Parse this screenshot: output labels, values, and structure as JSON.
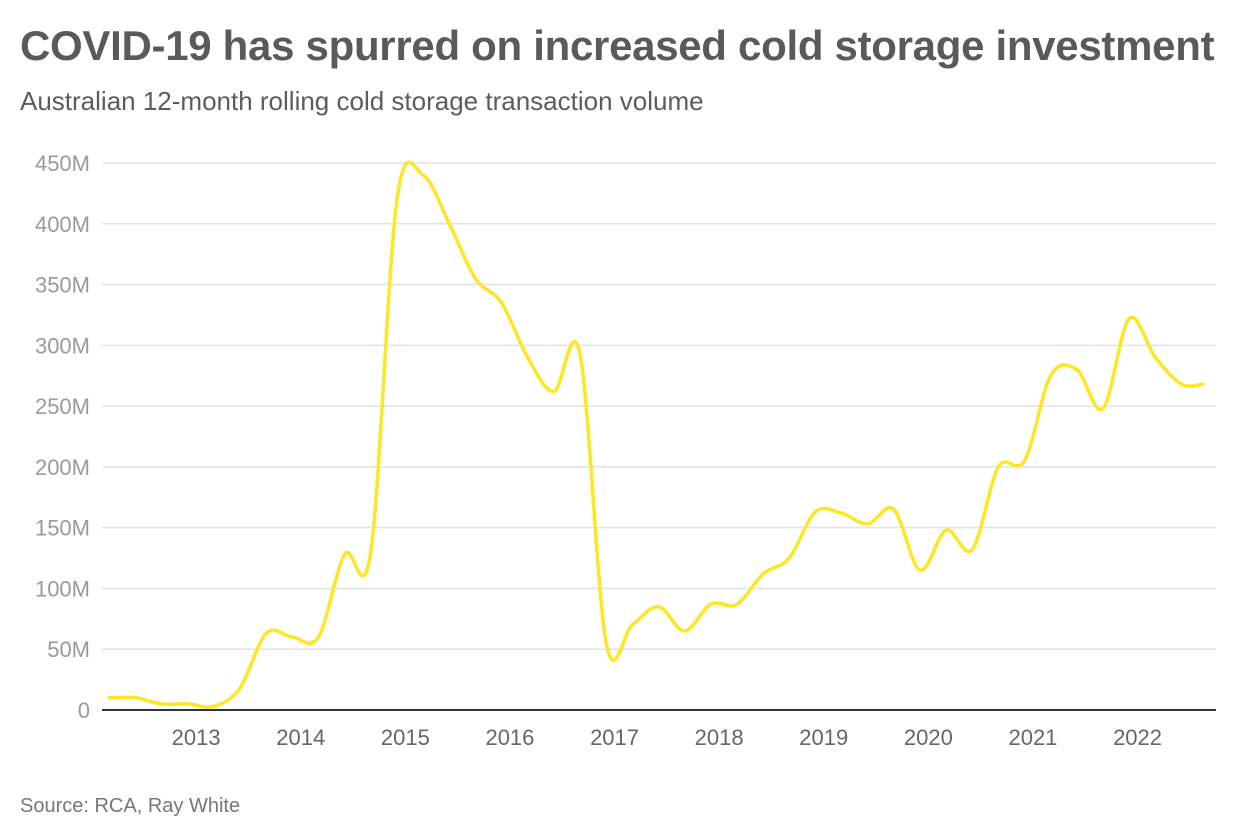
{
  "title": "COVID-19 has spurred on increased cold storage investment",
  "subtitle": "Australian 12-month rolling cold storage transaction volume",
  "source": "Source: RCA, Ray White",
  "colors": {
    "line": "#FDE725",
    "grid": "#e2e2e2",
    "axis": "#333333",
    "text": "#5a5a5a"
  },
  "chart_data": {
    "type": "line",
    "title": "COVID-19 has spurred on increased cold storage investment",
    "subtitle": "Australian 12-month rolling cold storage transaction volume",
    "xlabel": "",
    "ylabel": "",
    "xlim": [
      2012.1,
      2022.75
    ],
    "ylim": [
      0,
      450
    ],
    "y_unit": "M (AUD)",
    "y_ticks": [
      0,
      50,
      100,
      150,
      200,
      250,
      300,
      350,
      400,
      450
    ],
    "y_tick_labels": [
      "0",
      "50M",
      "100M",
      "150M",
      "200M",
      "250M",
      "300M",
      "350M",
      "400M",
      "450M"
    ],
    "x_ticks": [
      2013,
      2014,
      2015,
      2016,
      2017,
      2018,
      2019,
      2020,
      2021,
      2022
    ],
    "x_tick_labels": [
      "2013",
      "2014",
      "2015",
      "2016",
      "2017",
      "2018",
      "2019",
      "2020",
      "2021",
      "2022"
    ],
    "grid": true,
    "series": [
      {
        "name": "12-month rolling transaction volume",
        "x": [
          2012.17,
          2012.42,
          2012.67,
          2012.92,
          2013.17,
          2013.42,
          2013.67,
          2013.92,
          2014.17,
          2014.42,
          2014.67,
          2014.92,
          2015.17,
          2015.42,
          2015.67,
          2015.92,
          2016.17,
          2016.42,
          2016.67,
          2016.92,
          2017.17,
          2017.42,
          2017.67,
          2017.92,
          2018.17,
          2018.42,
          2018.67,
          2018.92,
          2019.17,
          2019.42,
          2019.67,
          2019.92,
          2020.17,
          2020.42,
          2020.67,
          2020.92,
          2021.17,
          2021.42,
          2021.67,
          2021.92,
          2022.17,
          2022.42,
          2022.62
        ],
        "y": [
          10,
          10,
          5,
          5,
          3,
          18,
          63,
          60,
          60,
          128,
          130,
          420,
          440,
          400,
          355,
          335,
          290,
          262,
          293,
          55,
          70,
          85,
          65,
          87,
          87,
          112,
          125,
          163,
          162,
          153,
          165,
          115,
          148,
          132,
          200,
          205,
          275,
          280,
          248,
          322,
          290,
          268,
          268
        ]
      }
    ]
  }
}
